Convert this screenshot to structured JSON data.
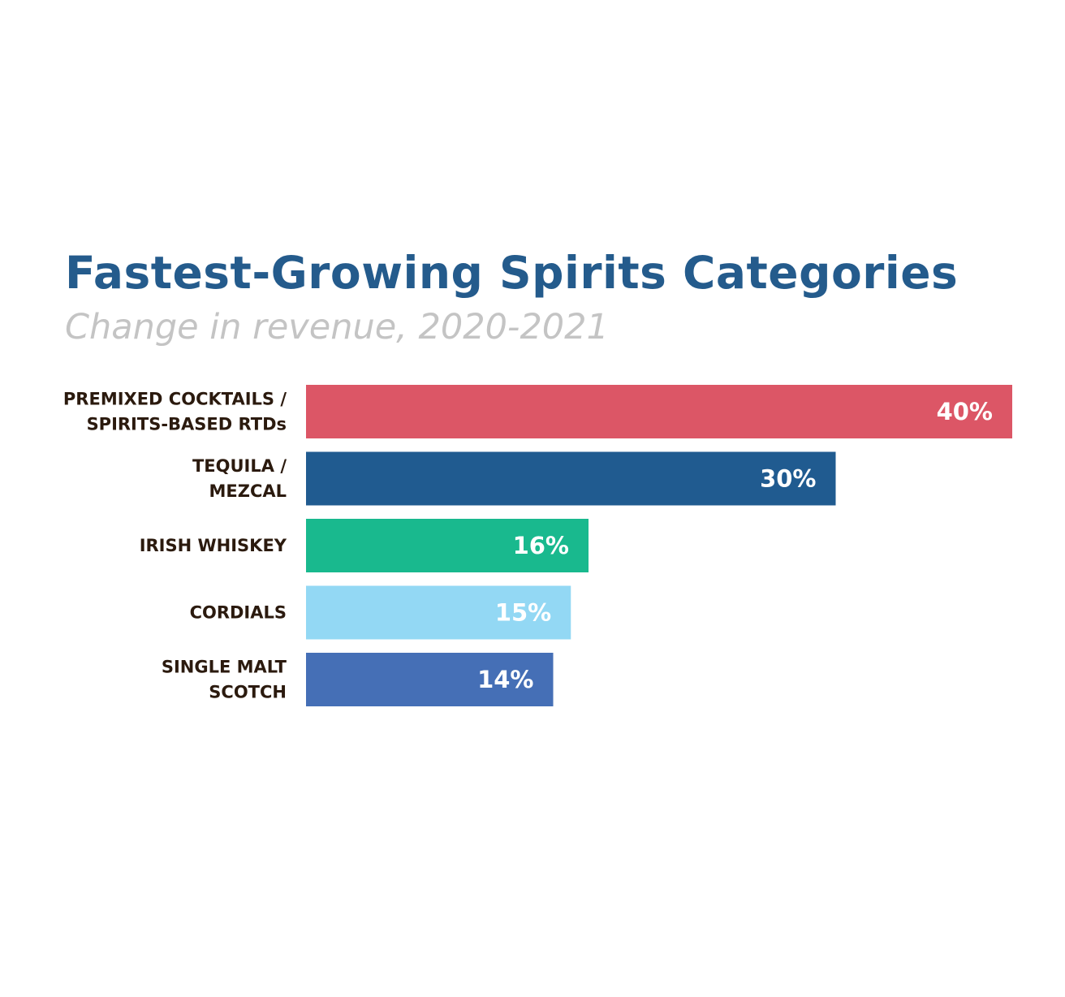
{
  "chart_data": {
    "type": "bar",
    "orientation": "horizontal",
    "title": "Fastest-Growing Spirits Categories",
    "subtitle": "Change in revenue, 2020-2021",
    "categories": [
      [
        "PREMIXED COCKTAILS /",
        "SPIRITS-BASED RTDs"
      ],
      [
        "TEQUILA /",
        "MEZCAL"
      ],
      [
        "IRISH WHISKEY"
      ],
      [
        "CORDIALS"
      ],
      [
        "SINGLE MALT",
        "SCOTCH"
      ]
    ],
    "values": [
      40,
      30,
      16,
      15,
      14
    ],
    "value_labels": [
      "40%",
      "30%",
      "16%",
      "15%",
      "14%"
    ],
    "colors": [
      "#dc5666",
      "#205b90",
      "#19b98e",
      "#93d8f4",
      "#456fb6"
    ],
    "xlim": [
      0,
      40
    ],
    "grid": false,
    "legend": "none"
  },
  "colors": {
    "title": "#245b8c",
    "subtitle": "#c4c4c4",
    "category_text": "#2b1a0e",
    "value_text": "#ffffff"
  }
}
